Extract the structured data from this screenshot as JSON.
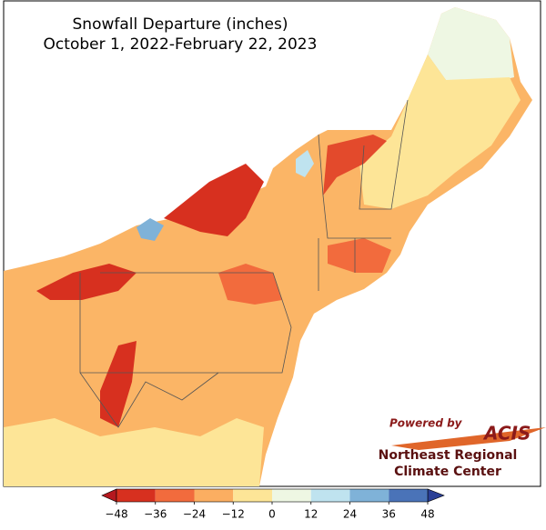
{
  "header": {
    "title": "Snowfall Departure (inches)",
    "subtitle": "October 1, 2022-February 22, 2023"
  },
  "legend": {
    "ticks": [
      {
        "value": -48,
        "label": "−48"
      },
      {
        "value": -36,
        "label": "−36"
      },
      {
        "value": -24,
        "label": "−24"
      },
      {
        "value": -12,
        "label": "−12"
      },
      0,
      12,
      24,
      36,
      48
    ],
    "colors": [
      "#d7301f",
      "#f26b3d",
      "#fbae61",
      "#fde597",
      "#eef7e3",
      "#bfe3ef",
      "#7fb2d8",
      "#4a73b8"
    ],
    "under_color": "#b5181f",
    "over_color": "#2a3f96"
  },
  "logo": {
    "powered": "Powered by",
    "name": "ACIS",
    "line1": "Northeast Regional",
    "line2": "Climate Center"
  }
}
